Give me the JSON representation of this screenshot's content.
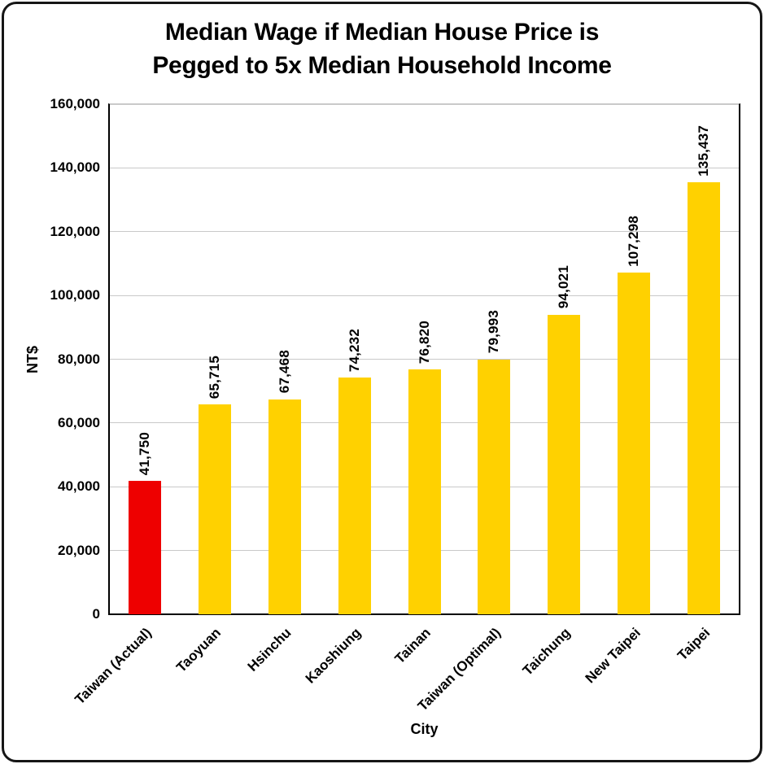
{
  "chart_data": {
    "type": "bar",
    "title": "Median Wage if Median House Price is Pegged to 5x Median Household Income",
    "title_lines": [
      "Median Wage if Median House Price is",
      "Pegged to 5x Median Household Income"
    ],
    "categories": [
      "Taiwan (Actual)",
      "Taoyuan",
      "Hsinchu",
      "Kaoshiung",
      "Tainan",
      "Taiwan (Optimal)",
      "Taichung",
      "New Taipei",
      "Taipei"
    ],
    "values": [
      41750,
      65715,
      67468,
      74232,
      76820,
      79993,
      94021,
      107298,
      135437
    ],
    "value_labels": [
      "41,750",
      "65,715",
      "67,468",
      "74,232",
      "76,820",
      "79,993",
      "94,021",
      "107,298",
      "135,437"
    ],
    "xlabel": "City",
    "ylabel": "NT$",
    "ylim": [
      0,
      160000
    ],
    "ytick_step": 20000,
    "ytick_labels": [
      "0",
      "20,000",
      "40,000",
      "60,000",
      "80,000",
      "100,000",
      "120,000",
      "140,000",
      "160,000"
    ],
    "highlight_index": 0,
    "grid": "horizontal",
    "legend": "none"
  },
  "colors": {
    "highlight_bar": "#ee0000",
    "bar": "#ffd100",
    "grid": "#c9c9c9",
    "axis": "#000000",
    "text": "#000000"
  }
}
